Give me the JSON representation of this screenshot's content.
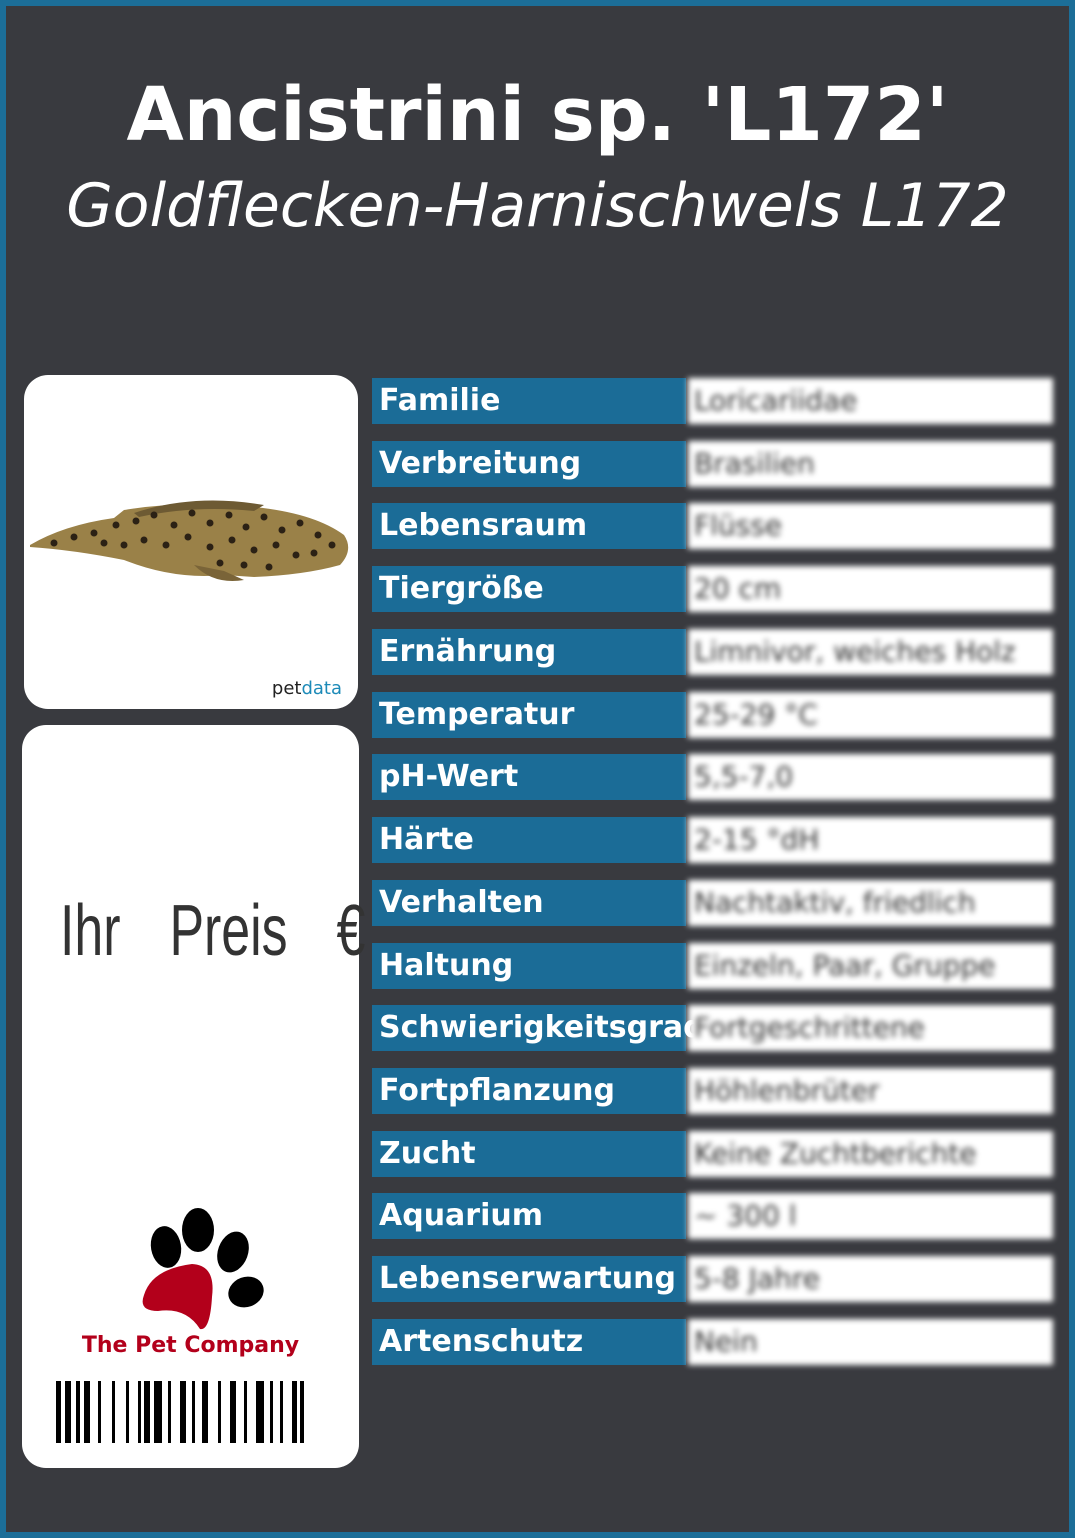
{
  "title": "Ancistrini sp. 'L172'",
  "subtitle": "Goldflecken-Harnischwels L172",
  "image_credit": {
    "prefix": "pet",
    "suffix": "data"
  },
  "price_label": "Ihr  Preis  €",
  "company": "The Pet Company",
  "colors": {
    "frame": "#1c6e98",
    "background": "#393a3f",
    "label": "#1b6c97",
    "company": "#b3001b"
  },
  "facts": [
    {
      "label": "Familie",
      "value": "Loricariidae"
    },
    {
      "label": "Verbreitung",
      "value": "Brasilien"
    },
    {
      "label": "Lebensraum",
      "value": "Flüsse"
    },
    {
      "label": "Tiergröße",
      "value": "20 cm"
    },
    {
      "label": "Ernährung",
      "value": "Limnivor, weiches Holz"
    },
    {
      "label": "Temperatur",
      "value": "25-29 °C"
    },
    {
      "label": "pH-Wert",
      "value": "5,5-7,0"
    },
    {
      "label": "Härte",
      "value": "2-15 °dH"
    },
    {
      "label": "Verhalten",
      "value": "Nachtaktiv, friedlich"
    },
    {
      "label": "Haltung",
      "value": "Einzeln, Paar, Gruppe"
    },
    {
      "label": "Schwierigkeitsgrad",
      "value": "Fortgeschrittene"
    },
    {
      "label": "Fortpflanzung",
      "value": "Höhlenbrüter"
    },
    {
      "label": "Zucht",
      "value": "Keine Zuchtberichte"
    },
    {
      "label": "Aquarium",
      "value": "~ 300 l"
    },
    {
      "label": "Lebenserwartung",
      "value": "5-8 Jahre"
    },
    {
      "label": "Artenschutz",
      "value": "Nein"
    }
  ]
}
